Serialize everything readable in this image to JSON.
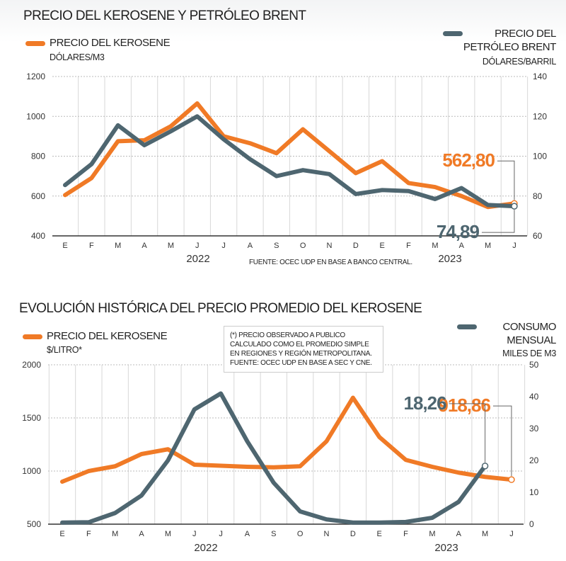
{
  "colors": {
    "kerosene": "#f07a26",
    "brent": "#4e6670",
    "grid": "#bbbbbb",
    "axis": "#333333"
  },
  "chart_data": [
    {
      "type": "line",
      "title": "PRECIO DEL KEROSENE Y PETRÓLEO BRENT",
      "categories": [
        "E",
        "F",
        "M",
        "A",
        "M",
        "J",
        "J",
        "A",
        "S",
        "O",
        "N",
        "D",
        "E",
        "F",
        "M",
        "A",
        "M",
        "J"
      ],
      "year_labels": [
        "2022",
        "2023"
      ],
      "source": "FUENTE: OCEC UDP EN BASE A BANCO CENTRAL.",
      "y_left": {
        "range": [
          400,
          1200
        ],
        "ticks": [
          "400",
          "600",
          "800",
          "1000",
          "1200"
        ]
      },
      "y_right": {
        "range": [
          60,
          140
        ],
        "ticks": [
          "60",
          "80",
          "100",
          "120",
          "140"
        ]
      },
      "grid": true,
      "series": [
        {
          "name": "PRECIO DEL KEROSENE",
          "unit": "DÓLARES/M3",
          "axis": "left",
          "color": "#f07a26",
          "values": [
            605,
            690,
            875,
            880,
            950,
            1065,
            900,
            865,
            815,
            935,
            825,
            715,
            775,
            665,
            645,
            600,
            545,
            562.8
          ],
          "last_label": "562,80"
        },
        {
          "name": "PRECIO DEL PETRÓLEO BRENT",
          "unit": "DÓLARES/BARRIL",
          "axis": "right",
          "color": "#4e6670",
          "values": [
            85.5,
            96,
            115.5,
            105.5,
            112.5,
            120,
            108.5,
            98.5,
            90,
            93,
            91,
            81,
            83,
            82.5,
            78.5,
            84,
            75.5,
            74.89
          ],
          "last_label": "74,89"
        }
      ]
    },
    {
      "type": "line",
      "title": "EVOLUCIÓN HISTÓRICA DEL PRECIO PROMEDIO DEL KEROSENE",
      "categories": [
        "E",
        "F",
        "M",
        "A",
        "M",
        "J",
        "J",
        "A",
        "S",
        "O",
        "N",
        "D",
        "E",
        "F",
        "M",
        "A",
        "M",
        "J"
      ],
      "year_labels": [
        "2022",
        "2023"
      ],
      "note": "(*) PRECIO OBSERVADO A PUBLICO CALCULADO COMO EL PROMEDIO SIMPLE EN REGIONES Y REGIÓN METROPOLITANA. FUENTE: OCEC UDP EN BASE A SEC Y CNE.",
      "y_left": {
        "range": [
          500,
          2000
        ],
        "ticks": [
          "500",
          "1000",
          "1500",
          "2000"
        ]
      },
      "y_right": {
        "range": [
          0,
          50
        ],
        "ticks": [
          "0",
          "10",
          "20",
          "30",
          "40",
          "50"
        ]
      },
      "grid": true,
      "series": [
        {
          "name": "PRECIO DEL KEROSENE",
          "unit": "$/LITRO*",
          "axis": "left",
          "color": "#f07a26",
          "values": [
            900,
            1000,
            1045,
            1160,
            1205,
            1060,
            1050,
            1040,
            1035,
            1045,
            1280,
            1690,
            1320,
            1105,
            1040,
            985,
            945,
            918.86
          ],
          "last_label": "918,86"
        },
        {
          "name": "CONSUMO MENSUAL",
          "unit": "MILES DE M3",
          "axis": "right",
          "color": "#4e6670",
          "values": [
            0.5,
            0.6,
            3.5,
            9,
            20,
            36,
            41,
            26,
            13,
            4,
            1.5,
            0.5,
            0.5,
            0.7,
            2,
            7,
            18.26,
            null
          ],
          "last_label": "18,26"
        }
      ]
    }
  ]
}
